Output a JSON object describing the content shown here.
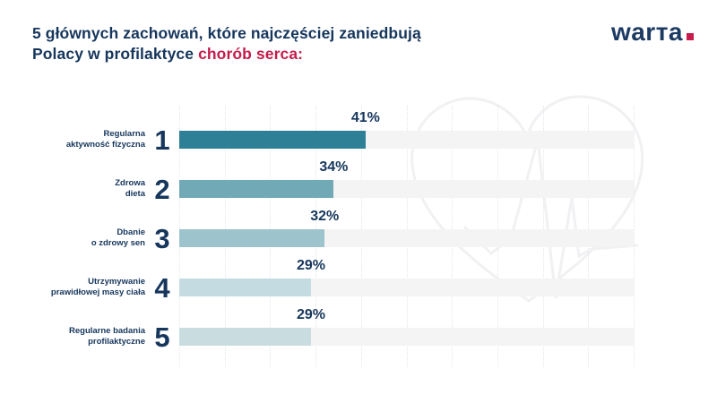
{
  "header": {
    "title_line1": "5 głównych zachowań, które najczęściej zaniedbują",
    "title_line2_prefix": "Polacy w profilaktyce ",
    "title_line2_highlight": "chorób serca:",
    "logo_text": "warта"
  },
  "colors": {
    "navy": "#16365C",
    "highlight_red": "#C41D4D",
    "logo_navy": "#1D3A63",
    "logo_dot_red": "#C91C4E",
    "track_gray": "#F4F4F4",
    "gridline": "#E3E7EB",
    "watermark": "#F1F0F2"
  },
  "chart_data": {
    "type": "bar",
    "orientation": "horizontal",
    "title": "5 głównych zachowań, które najczęściej zaniedbują Polacy w profilaktyce chorób serca:",
    "unit": "%",
    "xlim": [
      0,
      100
    ],
    "grid_step": 10,
    "grid": "vertical-dotted",
    "legend": "none",
    "categories": [
      "Regularna aktywność fizyczna",
      "Zdrowa dieta",
      "Dbanie o zdrowy sen",
      "Utrzymywanie prawidłowej masy ciała",
      "Regularne badania profilaktyczne"
    ],
    "values": [
      41,
      34,
      32,
      29,
      29
    ],
    "rows": [
      {
        "rank": "1",
        "label_lines": [
          "Regularna",
          "aktywność fizyczna"
        ],
        "value": 41,
        "value_label": "41%",
        "bar_color": "#2E8096"
      },
      {
        "rank": "2",
        "label_lines": [
          "Zdrowa",
          "dieta"
        ],
        "value": 34,
        "value_label": "34%",
        "bar_color": "#72A9B7"
      },
      {
        "rank": "3",
        "label_lines": [
          "Dbanie",
          "o zdrowy sen"
        ],
        "value": 32,
        "value_label": "32%",
        "bar_color": "#9DC4CD"
      },
      {
        "rank": "4",
        "label_lines": [
          "Utrzymywanie",
          "prawidłowej masy ciała"
        ],
        "value": 29,
        "value_label": "29%",
        "bar_color": "#C4DCE1"
      },
      {
        "rank": "5",
        "label_lines": [
          "Regularne badania",
          "profilaktyczne"
        ],
        "value": 29,
        "value_label": "29%",
        "bar_color": "#C9DDE1"
      }
    ]
  }
}
